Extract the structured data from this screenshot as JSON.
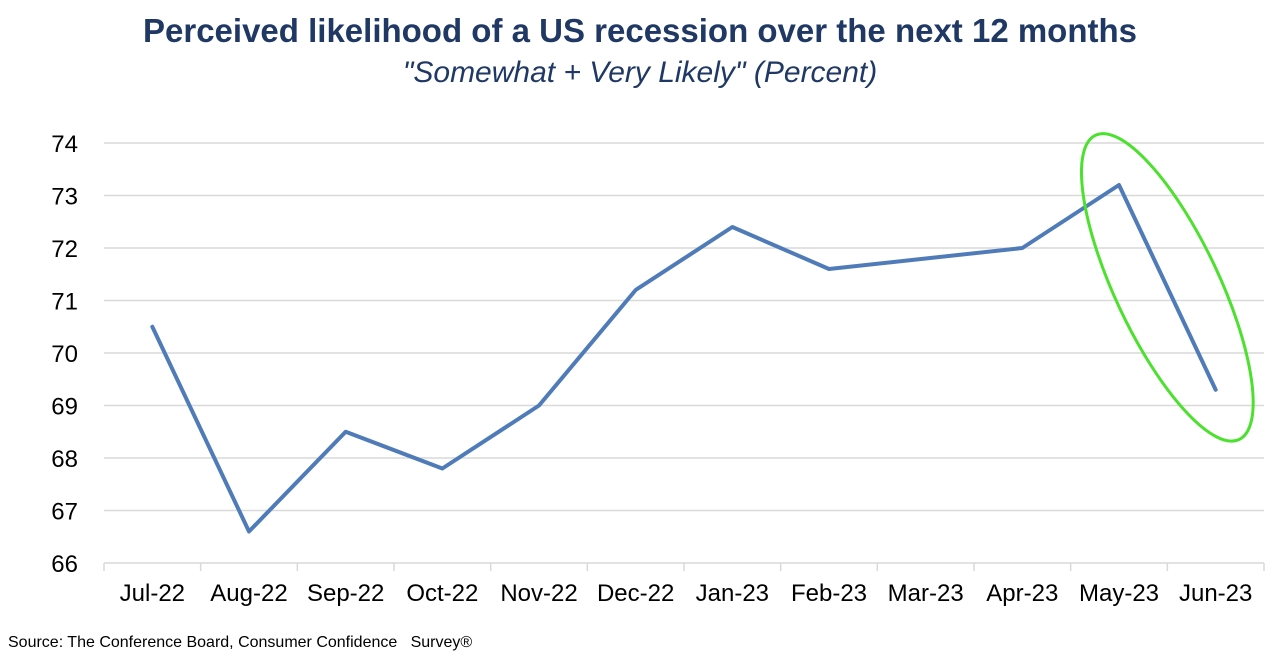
{
  "chart_data": {
    "type": "line",
    "title": "Perceived likelihood of a US recession over the next 12 months",
    "subtitle": "\"Somewhat + Very Likely\" (Percent)",
    "categories": [
      "Jul-22",
      "Aug-22",
      "Sep-22",
      "Oct-22",
      "Nov-22",
      "Dec-22",
      "Jan-23",
      "Feb-23",
      "Mar-23",
      "Apr-23",
      "May-23",
      "Jun-23"
    ],
    "series": [
      {
        "values": [
          70.5,
          66.6,
          68.5,
          67.8,
          69.0,
          71.2,
          72.4,
          71.6,
          71.8,
          72.0,
          73.2,
          69.3
        ]
      }
    ],
    "ylim": [
      66,
      74
    ],
    "yticks": [
      66,
      67,
      68,
      69,
      70,
      71,
      72,
      73,
      74
    ],
    "grid": true,
    "line_color": "#4f7cb8",
    "highlight_color": "#4ce12e",
    "highlight_categories": [
      "May-23",
      "Jun-23"
    ]
  },
  "source": "Source: The Conference Board, Consumer Confidence   Survey®"
}
